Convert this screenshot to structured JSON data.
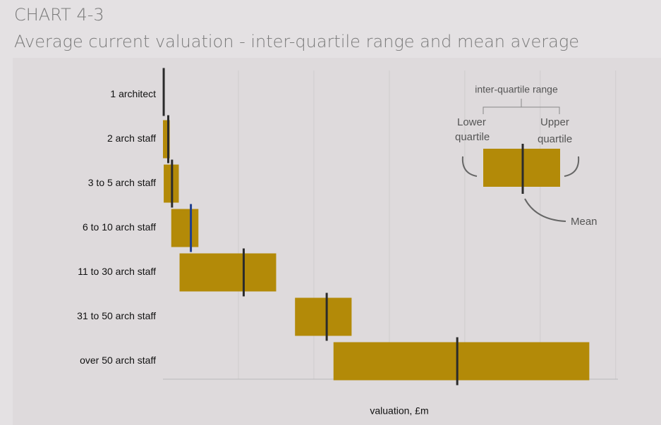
{
  "chart_data": {
    "type": "floating_bar",
    "title": "CHART 4-3",
    "subtitle": "Average current valuation - inter-quartile range and mean average",
    "xlabel": "valuation, £m",
    "categories": [
      "1 architect",
      "2 arch staff",
      "3 to 5 arch staff",
      "6 to 10 arch staff",
      "11 to 30 arch staff",
      "31 to 50 arch staff",
      "over 50 arch staff"
    ],
    "lower": [
      0,
      0,
      0.01,
      0.11,
      0.22,
      1.75,
      2.26
    ],
    "upper": [
      0.02,
      0.09,
      0.21,
      0.47,
      1.5,
      2.5,
      5.65
    ],
    "mean": [
      0.01,
      0.07,
      0.12,
      0.37,
      1.07,
      2.17,
      3.9
    ],
    "color": "#b38a08",
    "mean_colors": [
      "#2b2b2b",
      "#2b2b2b",
      "#2b2b2b",
      "#1f3f8f",
      "#2b2b2b",
      "#2b2b2b",
      "#2b2b2b"
    ],
    "xlim": [
      0,
      6.03
    ],
    "xticks": [
      0,
      1,
      2,
      3,
      4,
      5,
      6
    ],
    "grid": true,
    "key": {
      "title": "inter-quartile range",
      "lower": [
        "Lower",
        "quartile"
      ],
      "upper": [
        "Upper",
        "quartile"
      ],
      "mean": "Mean"
    }
  }
}
